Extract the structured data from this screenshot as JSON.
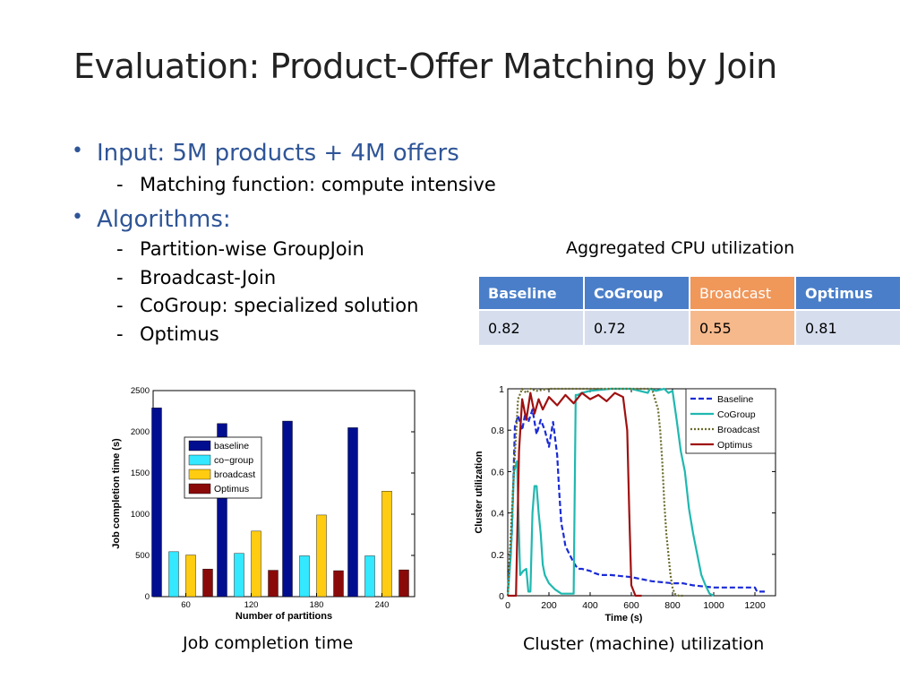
{
  "slide": {
    "title": "Evaluation: Product-Offer Matching by Join",
    "bullets": [
      {
        "text": "Input: 5M products + 4M offers",
        "sub": [
          "Matching function: compute intensive"
        ]
      },
      {
        "text": "Algorithms:",
        "sub": [
          "Partition-wise GroupJoin",
          "Broadcast-Join",
          "CoGroup: specialized solution",
          "Optimus"
        ]
      }
    ],
    "dash": "-",
    "bullet_glyph": "•"
  },
  "cpu_table": {
    "caption": "Aggregated CPU utilization",
    "headers": [
      "Baseline",
      "CoGroup",
      "Broadcast",
      "Optimus"
    ],
    "values": [
      "0.82",
      "0.72",
      "0.55",
      "0.81"
    ],
    "highlight_index": 2,
    "colors": {
      "header": "#4a7ec9",
      "cell": "#d6deee",
      "highlight_header": "#f0975a",
      "highlight_cell": "#f6b98c"
    }
  },
  "captions": {
    "bar": "Job completion time",
    "line": "Cluster (machine) utilization"
  },
  "chart_data": [
    {
      "type": "bar",
      "xlabel": "Number of partitions",
      "ylabel": "Job completion time (s)",
      "ylim": [
        0,
        2500
      ],
      "yticks": [
        0,
        500,
        1000,
        1500,
        2000,
        2500
      ],
      "categories": [
        "60",
        "120",
        "180",
        "240"
      ],
      "legend_position": "center-left",
      "series": [
        {
          "name": "baseline",
          "color": "#000e8f",
          "values": [
            2290,
            2100,
            2130,
            2050
          ]
        },
        {
          "name": "co−group",
          "color": "#33e8ff",
          "values": [
            545,
            525,
            495,
            495
          ]
        },
        {
          "name": "broadcast",
          "color": "#ffcc11",
          "values": [
            505,
            795,
            990,
            1280
          ]
        },
        {
          "name": "Optimus",
          "color": "#8a0a0a",
          "values": [
            335,
            320,
            315,
            325
          ]
        }
      ]
    },
    {
      "type": "line",
      "xlabel": "Time (s)",
      "ylabel": "Cluster utilization",
      "xlim": [
        0,
        1300
      ],
      "ylim": [
        0,
        1
      ],
      "xticks": [
        0,
        200,
        400,
        600,
        800,
        1000,
        1200
      ],
      "yticks": [
        0,
        0.2,
        0.4,
        0.6,
        0.8,
        1
      ],
      "legend_position": "top-right",
      "series": [
        {
          "name": "Baseline",
          "color": "#1a2bd6",
          "dash": "6,3",
          "x": [
            0,
            20,
            35,
            50,
            70,
            85,
            100,
            120,
            140,
            160,
            180,
            200,
            220,
            240,
            250,
            260,
            270,
            280,
            300,
            320,
            340,
            360,
            400,
            420,
            450,
            500,
            600,
            650,
            700,
            800,
            850,
            900,
            1000,
            1100,
            1200,
            1210,
            1260
          ],
          "y": [
            0.02,
            0.3,
            0.82,
            0.87,
            0.8,
            0.88,
            0.84,
            0.9,
            0.78,
            0.85,
            0.8,
            0.72,
            0.84,
            0.68,
            0.5,
            0.35,
            0.3,
            0.24,
            0.2,
            0.16,
            0.13,
            0.13,
            0.12,
            0.11,
            0.1,
            0.1,
            0.09,
            0.08,
            0.07,
            0.06,
            0.06,
            0.05,
            0.04,
            0.04,
            0.04,
            0.02,
            0.02
          ]
        },
        {
          "name": "CoGroup",
          "color": "#20b8b0",
          "x": [
            0,
            15,
            30,
            45,
            60,
            75,
            90,
            100,
            110,
            120,
            130,
            140,
            150,
            160,
            170,
            180,
            200,
            230,
            260,
            300,
            320,
            330,
            340,
            360,
            400,
            500,
            600,
            680,
            690,
            720,
            760,
            780,
            800,
            820,
            840,
            860,
            880,
            900,
            920,
            940,
            960,
            980,
            1000
          ],
          "y": [
            0.0,
            0.2,
            0.6,
            0.65,
            0.1,
            0.12,
            0.13,
            0.02,
            0.02,
            0.4,
            0.53,
            0.53,
            0.4,
            0.3,
            0.15,
            0.1,
            0.06,
            0.03,
            0.01,
            0.01,
            0.01,
            0.97,
            0.97,
            0.98,
            0.99,
            1,
            1,
            0.98,
            1,
            0.99,
            1,
            0.98,
            0.99,
            0.85,
            0.7,
            0.6,
            0.42,
            0.3,
            0.2,
            0.1,
            0.05,
            0.01,
            0.0
          ]
        },
        {
          "name": "Broadcast",
          "color": "#6b6b2c",
          "dash": "2,2",
          "x": [
            0,
            30,
            50,
            70,
            90,
            110,
            140,
            200,
            300,
            400,
            500,
            600,
            700,
            730,
            740,
            750,
            760,
            770,
            780,
            790,
            800,
            810,
            830,
            850
          ],
          "y": [
            0.0,
            0.6,
            0.95,
            1,
            0.98,
            1,
            0.99,
            1,
            1,
            1,
            1,
            1,
            1,
            0.9,
            0.8,
            0.65,
            0.45,
            0.3,
            0.2,
            0.1,
            0.04,
            0.01,
            0.0,
            0.0
          ]
        },
        {
          "name": "Optimus",
          "color": "#a01010",
          "x": [
            0,
            40,
            55,
            70,
            80,
            90,
            110,
            130,
            150,
            170,
            200,
            240,
            280,
            320,
            360,
            400,
            440,
            480,
            520,
            560,
            580,
            590,
            600,
            620,
            650
          ],
          "y": [
            0.0,
            0.0,
            0.7,
            0.95,
            0.9,
            0.85,
            0.98,
            0.88,
            0.95,
            0.9,
            0.96,
            0.92,
            0.97,
            0.93,
            0.98,
            0.95,
            0.97,
            0.94,
            0.98,
            0.96,
            0.8,
            0.4,
            0.05,
            0.0,
            0.0
          ]
        }
      ]
    }
  ]
}
